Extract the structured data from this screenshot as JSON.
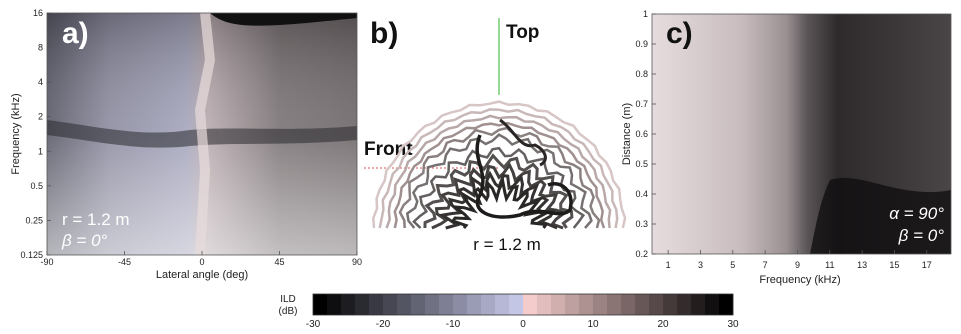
{
  "chart_data": [
    {
      "type": "heatmap",
      "panel_label": "a)",
      "xlabel": "Lateral angle (deg)",
      "ylabel": "Frequency (kHz)",
      "xlim": [
        -90,
        90
      ],
      "ylim": [
        0.125,
        16
      ],
      "y_scale": "log",
      "x_ticks": [
        "-90",
        "-45",
        "0",
        "45",
        "90"
      ],
      "y_ticks": [
        "0.125",
        "0.25",
        "0.5",
        "1",
        "2",
        "4",
        "8",
        "16"
      ],
      "annotations": [
        "r = 1.2 m",
        "β = 0°"
      ]
    },
    {
      "type": "other",
      "panel_label": "b)",
      "annotations": [
        "Top",
        "Front",
        "r = 1.2 m"
      ]
    },
    {
      "type": "heatmap",
      "panel_label": "c)",
      "xlabel": "Frequency (kHz)",
      "ylabel": "Distance (m)",
      "xlim": [
        0,
        18.5
      ],
      "ylim": [
        0.2,
        1
      ],
      "x_ticks": [
        "1",
        "3",
        "5",
        "7",
        "9",
        "11",
        "13",
        "15",
        "17"
      ],
      "y_ticks": [
        "0.2",
        "0.3",
        "0.4",
        "0.5",
        "0.6",
        "0.7",
        "0.8",
        "0.9",
        "1"
      ],
      "annotations": [
        "α = 90°",
        "β = 0°"
      ]
    }
  ],
  "colorbar": {
    "label_line1": "ILD",
    "label_line2": "(dB)",
    "ticks": [
      "-30",
      "-20",
      "-10",
      "0",
      "10",
      "20",
      "30"
    ],
    "range": [
      -30,
      30
    ],
    "colors": {
      "negative_end": "#000000",
      "mid_negative": "#c4c6e6",
      "mid_positive": "#f3cccb",
      "positive_end": "#000000"
    }
  }
}
